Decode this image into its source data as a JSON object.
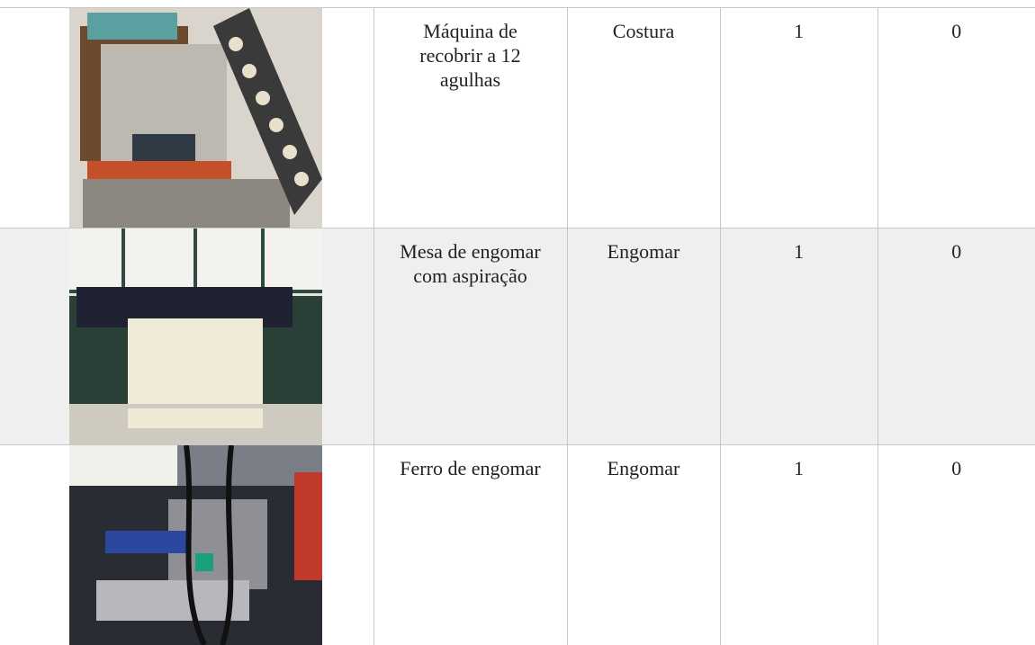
{
  "table": {
    "rows": [
      [
        "Máquina de recobrir a 12 agulhas",
        "Costura",
        1,
        0
      ],
      [
        "Mesa de engomar com aspiração",
        "Engomar",
        1,
        0
      ],
      [
        "Ferro de engomar",
        "Engomar",
        1,
        0
      ]
    ]
  }
}
